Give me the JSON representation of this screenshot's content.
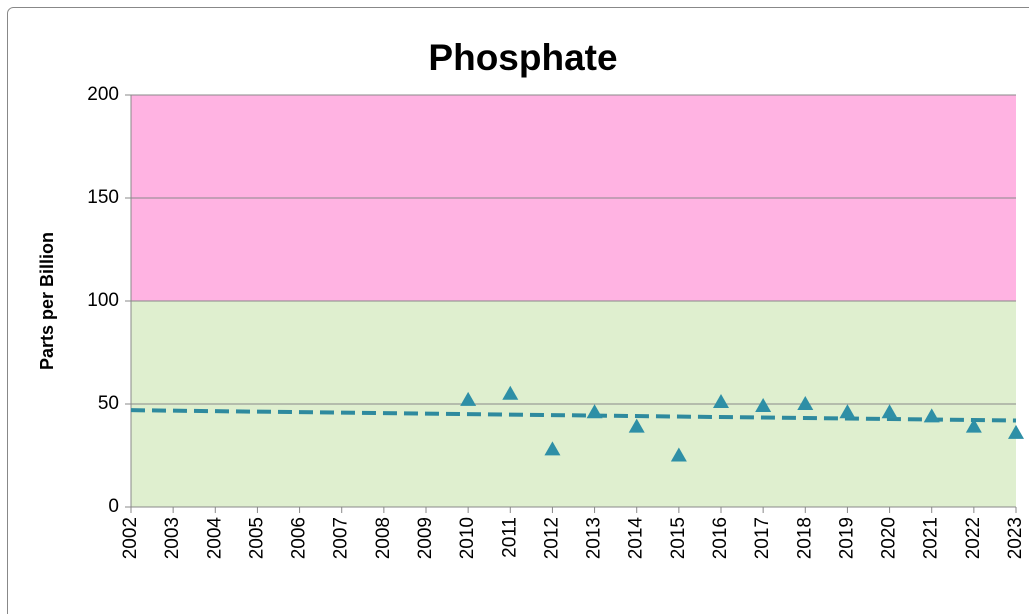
{
  "chart_data": {
    "type": "scatter",
    "title": "Phosphate",
    "y_label": "Parts per Billion",
    "x": [
      2010,
      2011,
      2012,
      2013,
      2014,
      2015,
      2016,
      2017,
      2018,
      2019,
      2020,
      2021,
      2022,
      2023
    ],
    "values": [
      52,
      55,
      28,
      46,
      39,
      25,
      51,
      49,
      50,
      46,
      46,
      44,
      39,
      36
    ],
    "color": "#2e8fa6",
    "marker": "triangle",
    "trendline": {
      "x": [
        2002,
        2023
      ],
      "values": [
        47,
        42
      ],
      "color": "#2e8a9e",
      "dashed": true
    },
    "bands": [
      {
        "from": 0,
        "to": 100,
        "color": "#dfefcf"
      },
      {
        "from": 100,
        "to": 200,
        "color": "#ffb3e2"
      }
    ],
    "xlim": [
      2002,
      2023
    ],
    "xticks": [
      2002,
      2003,
      2004,
      2005,
      2006,
      2007,
      2008,
      2009,
      2010,
      2011,
      2012,
      2013,
      2014,
      2015,
      2016,
      2017,
      2018,
      2019,
      2020,
      2021,
      2022,
      2023
    ],
    "ylim": [
      0,
      200
    ],
    "yticks": [
      0,
      50,
      100,
      150,
      200
    ],
    "grid": true
  }
}
